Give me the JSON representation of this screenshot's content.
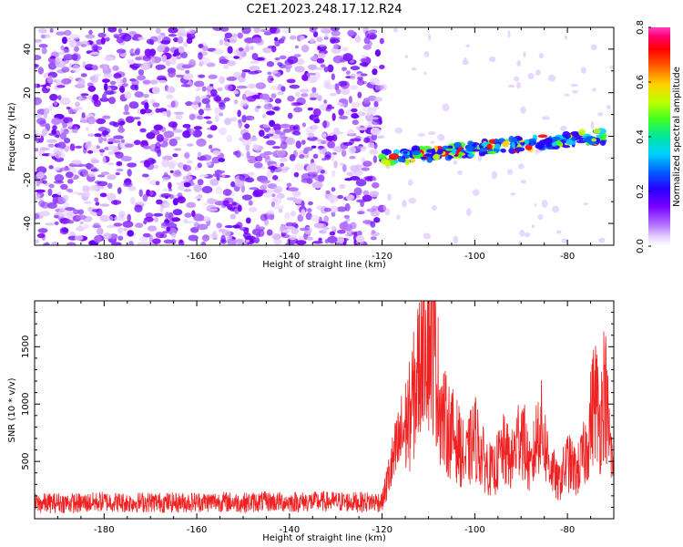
{
  "title": "C2E1.2023.248.17.12.R24",
  "chart_data": [
    {
      "type": "heatmap",
      "xlabel": "Height of straight line (km)",
      "ylabel": "Frequency (Hz)",
      "xlim": [
        -195,
        -70
      ],
      "ylim": [
        -50,
        50
      ],
      "x_ticks": [
        -180,
        -160,
        -140,
        -120,
        -100,
        -80
      ],
      "y_ticks": [
        -40,
        -20,
        0,
        20,
        40
      ],
      "colorbar": {
        "label": "Normalized spectral amplitude",
        "range": [
          0.0,
          0.8
        ],
        "ticks": [
          "0.0",
          "0.2",
          "0.4",
          "0.6",
          "0.8"
        ],
        "colors": [
          "#ffffff",
          "#e8d4ff",
          "#b070ff",
          "#7a00ff",
          "#2a00ff",
          "#0060ff",
          "#00d0ff",
          "#00e8a0",
          "#40ff20",
          "#c0ff00",
          "#ffd000",
          "#ff6000",
          "#ff0000",
          "#ff0070",
          "#ff40c0"
        ]
      },
      "features": [
        {
          "region": "noise",
          "x_range": [
            -195,
            -120
          ],
          "freq_range": [
            -50,
            50
          ],
          "amplitude_approx": 0.05
        },
        {
          "region": "signal_track",
          "x_range": [
            -120,
            -72
          ],
          "freq_start": -10,
          "freq_end": 0,
          "amplitude_max": 0.8
        }
      ]
    },
    {
      "type": "line",
      "xlabel": "Height of straight line (km)",
      "ylabel": "SNR (10 * v/v)",
      "xlim": [
        -195,
        -70
      ],
      "ylim": [
        0,
        1900
      ],
      "x_ticks": [
        -180,
        -160,
        -140,
        -120,
        -100,
        -80
      ],
      "y_ticks": [
        500,
        1000,
        1500
      ],
      "color": "#ee2222",
      "x": [
        -195,
        -190,
        -185,
        -180,
        -175,
        -170,
        -165,
        -160,
        -155,
        -150,
        -145,
        -140,
        -135,
        -130,
        -125,
        -120,
        -118,
        -116,
        -114,
        -112,
        -111,
        -110,
        -109,
        -108,
        -107,
        -106,
        -104,
        -102,
        -100,
        -98,
        -96,
        -94,
        -92,
        -90,
        -88,
        -86,
        -84,
        -82,
        -80,
        -78,
        -76,
        -74,
        -73,
        -72,
        -71,
        -70
      ],
      "y": [
        130,
        140,
        135,
        150,
        140,
        145,
        140,
        145,
        150,
        140,
        150,
        145,
        150,
        150,
        145,
        150,
        450,
        700,
        900,
        1300,
        1900,
        1600,
        1550,
        1200,
        900,
        800,
        700,
        500,
        720,
        500,
        400,
        600,
        500,
        800,
        400,
        850,
        500,
        300,
        500,
        400,
        600,
        1100,
        800,
        1200,
        700,
        400
      ]
    }
  ]
}
